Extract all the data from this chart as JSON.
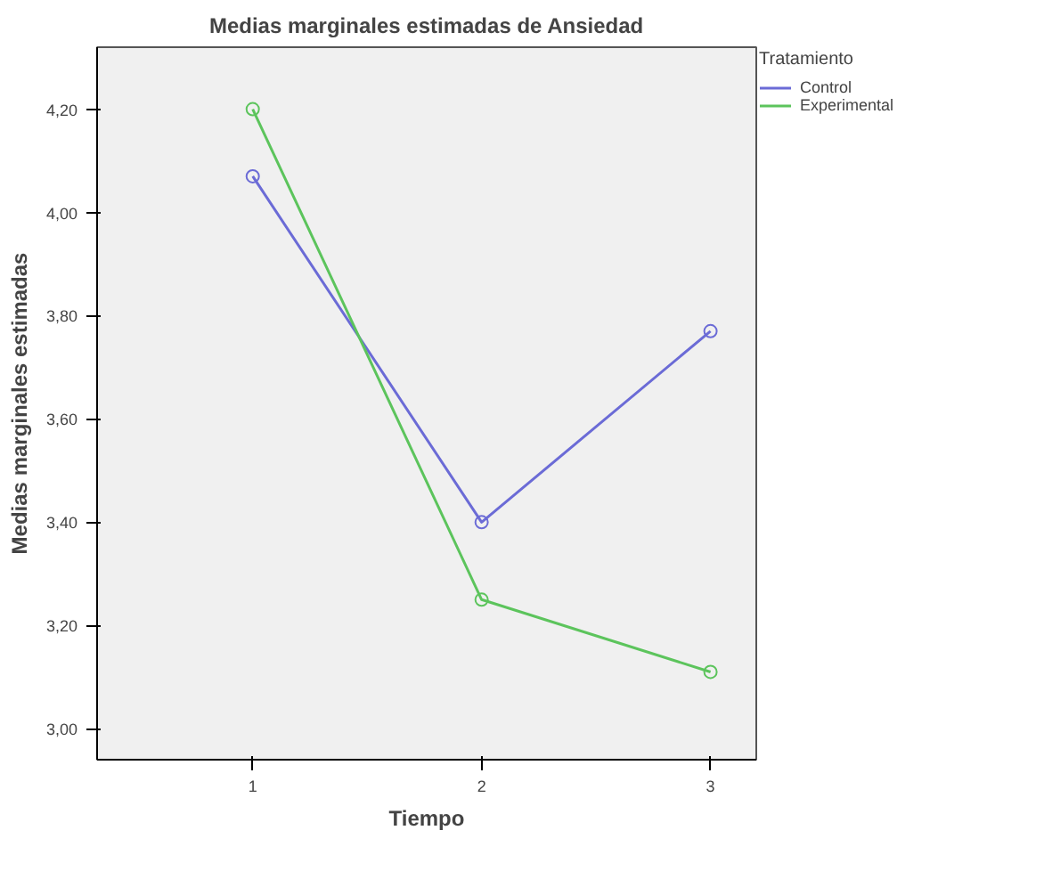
{
  "chart_data": {
    "type": "line",
    "title": "Medias marginales estimadas de Ansiedad",
    "xlabel": "Tiempo",
    "ylabel": "Medias marginales estimadas",
    "legend_title": "Tratamiento",
    "categories": [
      "1",
      "2",
      "3"
    ],
    "series": [
      {
        "name": "Control",
        "color": "#6b6bd6",
        "values": [
          4.07,
          3.4,
          3.77
        ]
      },
      {
        "name": "Experimental",
        "color": "#5cc45c",
        "values": [
          4.2,
          3.25,
          3.11
        ]
      }
    ],
    "ylim": [
      2.94,
      4.32
    ],
    "yticks": [
      {
        "value": 3.0,
        "label": "3,00"
      },
      {
        "value": 3.2,
        "label": "3,20"
      },
      {
        "value": 3.4,
        "label": "3,40"
      },
      {
        "value": 3.6,
        "label": "3,60"
      },
      {
        "value": 3.8,
        "label": "3,80"
      },
      {
        "value": 4.0,
        "label": "4,00"
      },
      {
        "value": 4.2,
        "label": "4,20"
      }
    ],
    "grid": false,
    "legend": "right",
    "marker": "circle",
    "line_style": "solid"
  }
}
